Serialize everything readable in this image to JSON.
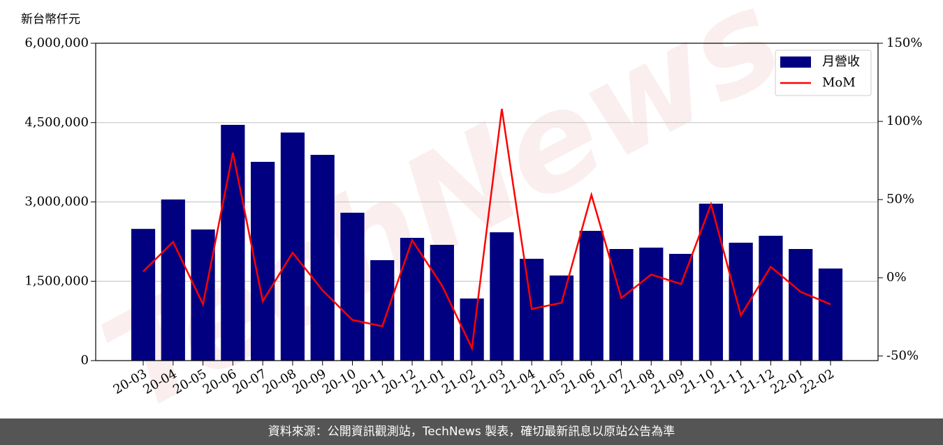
{
  "chart_data": {
    "type": "bar",
    "y_label": "新台幣仟元",
    "watermark": "TechNews",
    "categories": [
      "20-03",
      "20-04",
      "20-05",
      "20-06",
      "20-07",
      "20-08",
      "20-09",
      "20-10",
      "20-11",
      "20-12",
      "21-01",
      "21-02",
      "21-03",
      "21-04",
      "21-05",
      "21-06",
      "21-07",
      "21-08",
      "21-09",
      "21-10",
      "21-11",
      "21-12",
      "22-01",
      "22-02"
    ],
    "series": [
      {
        "name": "月營收",
        "type": "bar",
        "color": "#000080",
        "values": [
          2490000,
          3046000,
          2479000,
          4457000,
          3758000,
          4312000,
          3890000,
          2796000,
          1899000,
          2321000,
          2189000,
          1174000,
          2426000,
          1925000,
          1609000,
          2453000,
          2110000,
          2136000,
          2018000,
          2967000,
          2229000,
          2360000,
          2110000,
          1741000
        ]
      },
      {
        "name": "MoM",
        "type": "line",
        "color": "#ff0000",
        "axis": "y2",
        "values": [
          4,
          23,
          -17,
          80,
          -15,
          16,
          -8,
          -27,
          -31,
          24,
          -5,
          -45,
          108,
          -20,
          -16,
          53,
          -13,
          2,
          -4,
          47,
          -24,
          7,
          -9,
          -17
        ]
      }
    ],
    "ylim": [
      0,
      6000000
    ],
    "yticks": [
      0,
      {
        "value": 1500000,
        "label": "1,500,000"
      },
      {
        "value": 3000000,
        "label": "3,000,000"
      },
      {
        "value": 4500000,
        "label": "4,500,000"
      },
      {
        "value": 6000000,
        "label": "6,000,000"
      }
    ],
    "y2lim": [
      -53,
      150
    ],
    "y2ticks": [
      {
        "value": -50,
        "label": "-50%"
      },
      {
        "value": 0,
        "label": "0%"
      },
      {
        "value": 50,
        "label": "50%"
      },
      {
        "value": 100,
        "label": "100%"
      },
      {
        "value": 150,
        "label": "150%"
      }
    ],
    "grid": true,
    "legend": "upper right"
  },
  "footer": {
    "text": "資料來源：公開資訊觀測站，TechNews 製表，確切最新訊息以原站公告為準"
  }
}
